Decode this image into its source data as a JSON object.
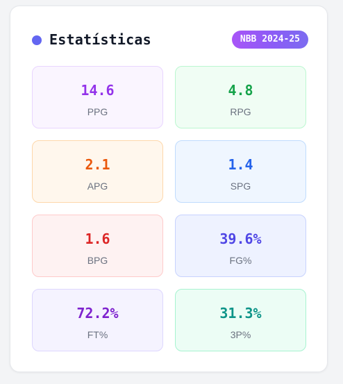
{
  "header": {
    "title": "Estatísticas",
    "badge": "NBB 2024-25"
  },
  "colors": {
    "dot": "#6366f1"
  },
  "stats": [
    {
      "value": "14.6",
      "label": "PPG",
      "color": "#9333ea",
      "bg": "#faf5ff",
      "border": "#e9d5ff"
    },
    {
      "value": "4.8",
      "label": "RPG",
      "color": "#16a34a",
      "bg": "#f0fdf4",
      "border": "#bbf7d0"
    },
    {
      "value": "2.1",
      "label": "APG",
      "color": "#ea580c",
      "bg": "#fff7ed",
      "border": "#fed7aa"
    },
    {
      "value": "1.4",
      "label": "SPG",
      "color": "#2563eb",
      "bg": "#eff6ff",
      "border": "#bfdbfe"
    },
    {
      "value": "1.6",
      "label": "BPG",
      "color": "#dc2626",
      "bg": "#fef2f2",
      "border": "#fecaca"
    },
    {
      "value": "39.6%",
      "label": "FG%",
      "color": "#4f46e5",
      "bg": "#eef2ff",
      "border": "#c7d2fe"
    },
    {
      "value": "72.2%",
      "label": "FT%",
      "color": "#7e22ce",
      "bg": "#f5f3ff",
      "border": "#ddd6fe"
    },
    {
      "value": "31.3%",
      "label": "3P%",
      "color": "#0d9488",
      "bg": "#ecfdf5",
      "border": "#a7f3d0"
    }
  ]
}
